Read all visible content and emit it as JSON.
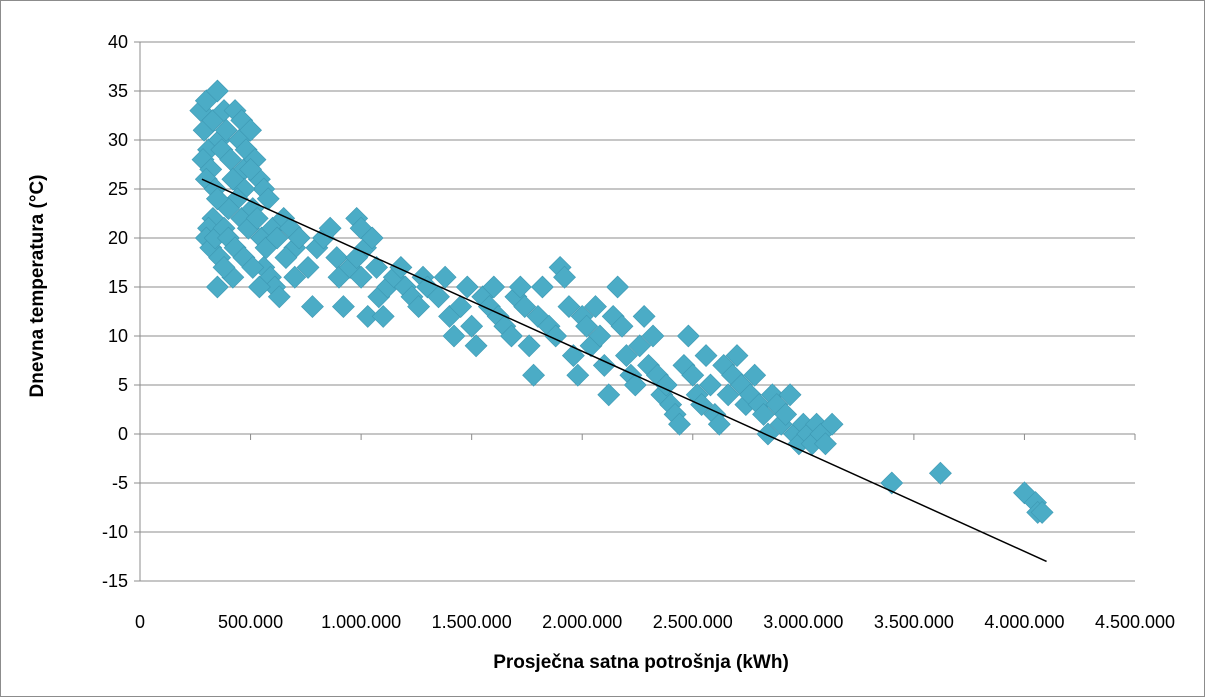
{
  "chart_data": {
    "type": "scatter",
    "title": "",
    "xlabel": "Prosječna satna potrošnja (kWh)",
    "ylabel": "Dnevna temperatura (°C)",
    "xlim": [
      0,
      4500000
    ],
    "ylim": [
      -15,
      40
    ],
    "x_ticks": [
      0,
      500000,
      1000000,
      1500000,
      2000000,
      2500000,
      3000000,
      3500000,
      4000000,
      4500000
    ],
    "x_tick_labels": [
      "0",
      "500.000",
      "1.000.000",
      "1.500.000",
      "2.000.000",
      "2.500.000",
      "3.000.000",
      "3.500.000",
      "4.000.000",
      "4.500.000"
    ],
    "y_ticks": [
      -15,
      -10,
      -5,
      0,
      5,
      10,
      15,
      20,
      25,
      30,
      35,
      40
    ],
    "y_tick_labels": [
      "-15",
      "-10",
      "-5",
      "0",
      "5",
      "10",
      "15",
      "20",
      "25",
      "30",
      "35",
      "40"
    ],
    "grid": "horizontal",
    "legend": "none",
    "marker_color": "#4bacc6",
    "trendline_color": "#000000",
    "trendline": {
      "x": [
        280000,
        4100000
      ],
      "y": [
        26,
        -13
      ]
    },
    "series": [
      {
        "values": [
          [
            275000,
            33
          ],
          [
            290000,
            31
          ],
          [
            300000,
            34
          ],
          [
            310000,
            29
          ],
          [
            285000,
            28
          ],
          [
            330000,
            32
          ],
          [
            350000,
            35
          ],
          [
            360000,
            30
          ],
          [
            380000,
            33
          ],
          [
            320000,
            27
          ],
          [
            300000,
            26
          ],
          [
            340000,
            25
          ],
          [
            370000,
            29
          ],
          [
            390000,
            31
          ],
          [
            410000,
            28
          ],
          [
            430000,
            33
          ],
          [
            450000,
            30
          ],
          [
            470000,
            27
          ],
          [
            460000,
            32
          ],
          [
            480000,
            29
          ],
          [
            500000,
            31
          ],
          [
            520000,
            28
          ],
          [
            540000,
            26
          ],
          [
            560000,
            25
          ],
          [
            580000,
            24
          ],
          [
            500000,
            27
          ],
          [
            470000,
            25
          ],
          [
            440000,
            24
          ],
          [
            420000,
            26
          ],
          [
            400000,
            23
          ],
          [
            350000,
            24
          ],
          [
            330000,
            22
          ],
          [
            310000,
            21
          ],
          [
            300000,
            20
          ],
          [
            320000,
            19
          ],
          [
            340000,
            20
          ],
          [
            360000,
            18
          ],
          [
            380000,
            21
          ],
          [
            400000,
            20
          ],
          [
            430000,
            19
          ],
          [
            460000,
            22
          ],
          [
            490000,
            21
          ],
          [
            510000,
            23
          ],
          [
            530000,
            22
          ],
          [
            550000,
            20
          ],
          [
            570000,
            19
          ],
          [
            600000,
            21
          ],
          [
            620000,
            20
          ],
          [
            650000,
            22
          ],
          [
            680000,
            21
          ],
          [
            700000,
            19
          ],
          [
            720000,
            20
          ],
          [
            560000,
            17
          ],
          [
            590000,
            16
          ],
          [
            610000,
            15
          ],
          [
            630000,
            14
          ],
          [
            540000,
            15
          ],
          [
            420000,
            16
          ],
          [
            350000,
            15
          ],
          [
            380000,
            17
          ],
          [
            470000,
            18
          ],
          [
            510000,
            17
          ],
          [
            660000,
            18
          ],
          [
            700000,
            16
          ],
          [
            760000,
            17
          ],
          [
            780000,
            13
          ],
          [
            800000,
            19
          ],
          [
            830000,
            20
          ],
          [
            860000,
            21
          ],
          [
            890000,
            18
          ],
          [
            900000,
            16
          ],
          [
            920000,
            13
          ],
          [
            950000,
            17
          ],
          [
            980000,
            22
          ],
          [
            1000000,
            21
          ],
          [
            1020000,
            19
          ],
          [
            1050000,
            20
          ],
          [
            1070000,
            17
          ],
          [
            1000000,
            16
          ],
          [
            980000,
            18
          ],
          [
            1030000,
            12
          ],
          [
            1080000,
            14
          ],
          [
            1100000,
            12
          ],
          [
            1120000,
            15
          ],
          [
            1150000,
            16
          ],
          [
            1180000,
            17
          ],
          [
            1200000,
            15
          ],
          [
            1230000,
            14
          ],
          [
            1260000,
            13
          ],
          [
            1280000,
            16
          ],
          [
            1300000,
            15
          ],
          [
            1350000,
            14
          ],
          [
            1380000,
            16
          ],
          [
            1400000,
            12
          ],
          [
            1420000,
            10
          ],
          [
            1450000,
            13
          ],
          [
            1480000,
            15
          ],
          [
            1500000,
            11
          ],
          [
            1520000,
            9
          ],
          [
            1550000,
            14
          ],
          [
            1580000,
            13
          ],
          [
            1600000,
            15
          ],
          [
            1620000,
            12
          ],
          [
            1650000,
            11
          ],
          [
            1680000,
            10
          ],
          [
            1700000,
            14
          ],
          [
            1720000,
            15
          ],
          [
            1740000,
            13
          ],
          [
            1760000,
            9
          ],
          [
            1780000,
            6
          ],
          [
            1800000,
            12
          ],
          [
            1820000,
            15
          ],
          [
            1850000,
            11
          ],
          [
            1880000,
            10
          ],
          [
            1900000,
            17
          ],
          [
            1920000,
            16
          ],
          [
            1940000,
            13
          ],
          [
            1960000,
            8
          ],
          [
            1980000,
            6
          ],
          [
            2000000,
            12
          ],
          [
            2020000,
            11
          ],
          [
            2040000,
            9
          ],
          [
            2060000,
            13
          ],
          [
            2080000,
            10
          ],
          [
            2100000,
            7
          ],
          [
            2120000,
            4
          ],
          [
            2140000,
            12
          ],
          [
            2160000,
            15
          ],
          [
            2180000,
            11
          ],
          [
            2200000,
            8
          ],
          [
            2220000,
            6
          ],
          [
            2240000,
            5
          ],
          [
            2260000,
            9
          ],
          [
            2280000,
            12
          ],
          [
            2300000,
            7
          ],
          [
            2320000,
            10
          ],
          [
            2340000,
            6
          ],
          [
            2360000,
            4
          ],
          [
            2380000,
            5
          ],
          [
            2400000,
            3
          ],
          [
            2420000,
            2
          ],
          [
            2440000,
            1
          ],
          [
            2460000,
            7
          ],
          [
            2480000,
            10
          ],
          [
            2500000,
            6
          ],
          [
            2520000,
            4
          ],
          [
            2540000,
            3
          ],
          [
            2560000,
            8
          ],
          [
            2580000,
            5
          ],
          [
            2600000,
            2
          ],
          [
            2620000,
            1
          ],
          [
            2640000,
            7
          ],
          [
            2660000,
            4
          ],
          [
            2680000,
            6
          ],
          [
            2700000,
            8
          ],
          [
            2720000,
            5
          ],
          [
            2740000,
            3
          ],
          [
            2760000,
            4
          ],
          [
            2780000,
            6
          ],
          [
            2800000,
            3
          ],
          [
            2820000,
            2
          ],
          [
            2840000,
            0
          ],
          [
            2860000,
            4
          ],
          [
            2880000,
            3
          ],
          [
            2900000,
            1
          ],
          [
            2920000,
            2
          ],
          [
            2940000,
            4
          ],
          [
            2960000,
            0
          ],
          [
            2980000,
            -1
          ],
          [
            3000000,
            1
          ],
          [
            3020000,
            0
          ],
          [
            3040000,
            -1
          ],
          [
            3060000,
            1
          ],
          [
            3080000,
            0
          ],
          [
            3100000,
            -1
          ],
          [
            3130000,
            1
          ],
          [
            3400000,
            -5
          ],
          [
            3620000,
            -4
          ],
          [
            4000000,
            -6
          ],
          [
            4050000,
            -7
          ],
          [
            4060000,
            -8
          ],
          [
            4080000,
            -8
          ]
        ]
      }
    ]
  }
}
